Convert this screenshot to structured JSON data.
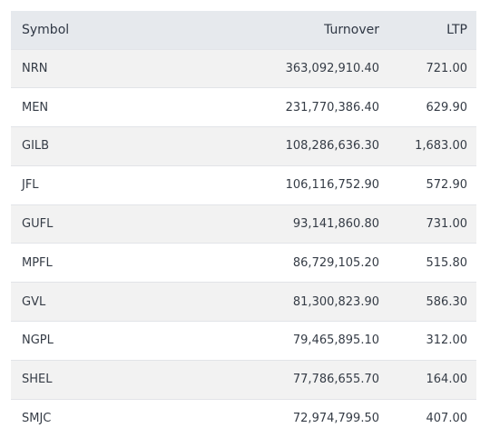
{
  "table": {
    "headers": {
      "symbol": "Symbol",
      "turnover": "Turnover",
      "ltp": "LTP"
    },
    "rows": [
      {
        "symbol": "NRN",
        "turnover": "363,092,910.40",
        "ltp": "721.00"
      },
      {
        "symbol": "MEN",
        "turnover": "231,770,386.40",
        "ltp": "629.90"
      },
      {
        "symbol": "GILB",
        "turnover": "108,286,636.30",
        "ltp": "1,683.00"
      },
      {
        "symbol": "JFL",
        "turnover": "106,116,752.90",
        "ltp": "572.90"
      },
      {
        "symbol": "GUFL",
        "turnover": "93,141,860.80",
        "ltp": "731.00"
      },
      {
        "symbol": "MPFL",
        "turnover": "86,729,105.20",
        "ltp": "515.80"
      },
      {
        "symbol": "GVL",
        "turnover": "81,300,823.90",
        "ltp": "586.30"
      },
      {
        "symbol": "NGPL",
        "turnover": "79,465,895.10",
        "ltp": "312.00"
      },
      {
        "symbol": "SHEL",
        "turnover": "77,786,655.70",
        "ltp": "164.00"
      },
      {
        "symbol": "SMJC",
        "turnover": "72,974,799.50",
        "ltp": "407.00"
      }
    ]
  }
}
